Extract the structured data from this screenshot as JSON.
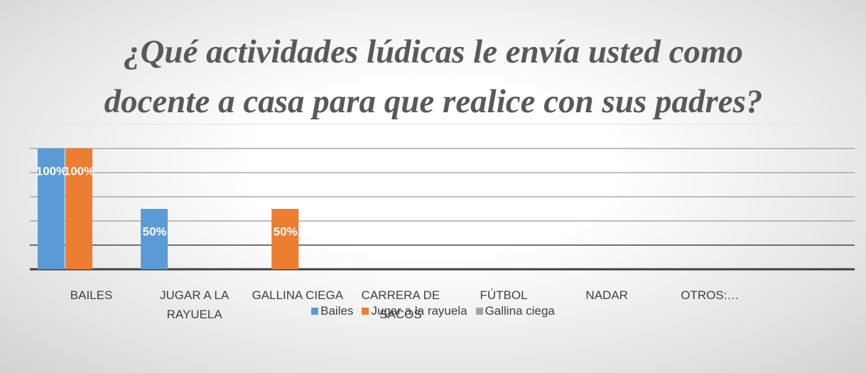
{
  "chart_data": {
    "type": "bar",
    "title": "¿Qué actividades lúdicas le envía usted como docente a casa para que realice con sus padres?",
    "categories": [
      "BAILES",
      "JUGAR A LA RAYUELA",
      "GALLINA CIEGA",
      "CARRERA DE SACOS",
      "FÚTBOL",
      "NADAR",
      "OTROS:…",
      null
    ],
    "series": [
      {
        "name": "Bailes",
        "color": "#5b9bd5",
        "values": [
          100,
          50,
          null,
          null,
          null,
          null,
          null,
          null
        ],
        "value_labels": [
          "100%",
          "50%",
          null,
          null,
          null,
          null,
          null,
          null
        ]
      },
      {
        "name": "Jugar a la rayuela",
        "color": "#ed7d31",
        "values": [
          100,
          null,
          50,
          null,
          null,
          null,
          null,
          null
        ],
        "value_labels": [
          "100%",
          null,
          "50%",
          null,
          null,
          null,
          null,
          null
        ]
      },
      {
        "name": "Gallina ciega",
        "color": "#a5a5a5",
        "values": [
          null,
          null,
          null,
          null,
          null,
          null,
          null,
          null
        ]
      }
    ],
    "ylim": [
      0,
      120
    ],
    "yticks": [
      0,
      20,
      40,
      60,
      80,
      100,
      120
    ],
    "grid": true,
    "legend": "bottom"
  }
}
